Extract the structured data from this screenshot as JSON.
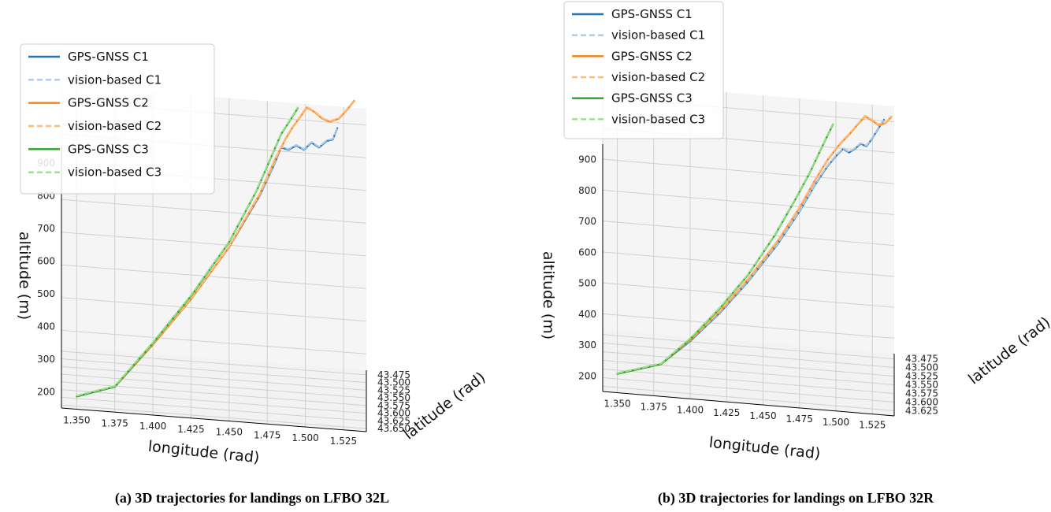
{
  "chart_data": [
    {
      "type": "line",
      "projection": "3d",
      "caption": "(a) 3D trajectories for landings on LFBO 32L",
      "xlabel": "longitude (rad)",
      "ylabel": "latitude (rad)",
      "zlabel": "altitude (m)",
      "xlim": [
        1.34,
        1.54
      ],
      "ylim": [
        43.46,
        43.66
      ],
      "zlim": [
        150,
        950
      ],
      "xticks": [
        "1.350",
        "1.375",
        "1.400",
        "1.425",
        "1.450",
        "1.475",
        "1.500",
        "1.525"
      ],
      "yticks": [
        "43.475",
        "43.500",
        "43.525",
        "43.550",
        "43.575",
        "43.600",
        "43.625",
        "43.650"
      ],
      "zticks": [
        "200",
        "300",
        "400",
        "500",
        "600",
        "700",
        "800",
        "900"
      ],
      "grid": true,
      "legend": "upper-left",
      "series": [
        {
          "name": "GPS-GNSS C1",
          "color": "#1f77b4",
          "dash": "solid",
          "points": [
            [
              1.35,
              43.645,
              175
            ],
            [
              1.375,
              43.62,
              190
            ],
            [
              1.4,
              43.59,
              300
            ],
            [
              1.425,
              43.56,
              420
            ],
            [
              1.45,
              43.53,
              560
            ],
            [
              1.47,
              43.505,
              700
            ],
            [
              1.48,
              43.49,
              790
            ],
            [
              1.484,
              43.48,
              830
            ],
            [
              1.489,
              43.475,
              820
            ],
            [
              1.494,
              43.47,
              830
            ],
            [
              1.499,
              43.466,
              815
            ],
            [
              1.504,
              43.462,
              835
            ],
            [
              1.509,
              43.46,
              820
            ],
            [
              1.514,
              43.458,
              840
            ],
            [
              1.518,
              43.457,
              845
            ],
            [
              1.521,
              43.456,
              880
            ]
          ]
        },
        {
          "name": "vision-based C1",
          "color": "#aec7e8",
          "dash": "dashed",
          "points": [
            [
              1.35,
              43.645,
              177
            ],
            [
              1.375,
              43.62,
              192
            ],
            [
              1.4,
              43.59,
              302
            ],
            [
              1.425,
              43.56,
              422
            ],
            [
              1.45,
              43.53,
              562
            ],
            [
              1.47,
              43.505,
              702
            ],
            [
              1.48,
              43.49,
              792
            ],
            [
              1.484,
              43.48,
              832
            ],
            [
              1.489,
              43.475,
              822
            ],
            [
              1.494,
              43.47,
              832
            ],
            [
              1.499,
              43.466,
              817
            ],
            [
              1.504,
              43.462,
              837
            ],
            [
              1.509,
              43.46,
              822
            ],
            [
              1.514,
              43.458,
              842
            ],
            [
              1.518,
              43.457,
              847
            ],
            [
              1.521,
              43.456,
              882
            ]
          ]
        },
        {
          "name": "GPS-GNSS C2",
          "color": "#ff7f0e",
          "dash": "solid",
          "points": [
            [
              1.35,
              43.645,
              175
            ],
            [
              1.375,
              43.62,
              190
            ],
            [
              1.4,
              43.59,
              300
            ],
            [
              1.425,
              43.56,
              420
            ],
            [
              1.45,
              43.53,
              560
            ],
            [
              1.47,
              43.505,
              705
            ],
            [
              1.48,
              43.49,
              800
            ],
            [
              1.487,
              43.483,
              860
            ],
            [
              1.492,
              43.478,
              895
            ],
            [
              1.497,
              43.474,
              925
            ],
            [
              1.501,
              43.471,
              950
            ],
            [
              1.506,
              43.468,
              935
            ],
            [
              1.511,
              43.466,
              915
            ],
            [
              1.516,
              43.464,
              905
            ],
            [
              1.522,
              43.462,
              915
            ],
            [
              1.527,
              43.46,
              940
            ],
            [
              1.532,
              43.459,
              970
            ]
          ]
        },
        {
          "name": "vision-based C2",
          "color": "#ffbb78",
          "dash": "dashed",
          "points": [
            [
              1.35,
              43.645,
              177
            ],
            [
              1.375,
              43.62,
              192
            ],
            [
              1.4,
              43.59,
              302
            ],
            [
              1.425,
              43.56,
              422
            ],
            [
              1.45,
              43.53,
              562
            ],
            [
              1.47,
              43.505,
              707
            ],
            [
              1.48,
              43.49,
              802
            ],
            [
              1.487,
              43.483,
              862
            ],
            [
              1.492,
              43.478,
              897
            ],
            [
              1.497,
              43.474,
              927
            ],
            [
              1.501,
              43.471,
              952
            ],
            [
              1.506,
              43.468,
              937
            ],
            [
              1.511,
              43.466,
              917
            ],
            [
              1.516,
              43.464,
              907
            ],
            [
              1.522,
              43.462,
              917
            ],
            [
              1.527,
              43.46,
              942
            ],
            [
              1.532,
              43.459,
              972
            ]
          ]
        },
        {
          "name": "GPS-GNSS C3",
          "color": "#2ca02c",
          "dash": "solid",
          "points": [
            [
              1.35,
              43.645,
              175
            ],
            [
              1.375,
              43.62,
              190
            ],
            [
              1.4,
              43.59,
              305
            ],
            [
              1.425,
              43.56,
              430
            ],
            [
              1.45,
              43.53,
              575
            ],
            [
              1.468,
              43.51,
              720
            ],
            [
              1.478,
              43.498,
              820
            ],
            [
              1.484,
              43.491,
              880
            ],
            [
              1.49,
              43.485,
              920
            ],
            [
              1.495,
              43.481,
              955
            ]
          ]
        },
        {
          "name": "vision-based C3",
          "color": "#98df8a",
          "dash": "dashed",
          "points": [
            [
              1.35,
              43.645,
              177
            ],
            [
              1.375,
              43.62,
              192
            ],
            [
              1.4,
              43.59,
              307
            ],
            [
              1.425,
              43.56,
              432
            ],
            [
              1.45,
              43.53,
              577
            ],
            [
              1.468,
              43.51,
              722
            ],
            [
              1.478,
              43.498,
              822
            ],
            [
              1.484,
              43.491,
              882
            ],
            [
              1.49,
              43.485,
              922
            ],
            [
              1.495,
              43.481,
              957
            ]
          ]
        }
      ]
    },
    {
      "type": "line",
      "projection": "3d",
      "caption": "(b) 3D trajectories for landings on LFBO 32R",
      "xlabel": "longitude (rad)",
      "ylabel": "latitude (rad)",
      "zlabel": "altitude (m)",
      "xlim": [
        1.34,
        1.54
      ],
      "ylim": [
        43.46,
        43.64
      ],
      "zlim": [
        150,
        950
      ],
      "xticks": [
        "1.350",
        "1.375",
        "1.400",
        "1.425",
        "1.450",
        "1.475",
        "1.500",
        "1.525"
      ],
      "yticks": [
        "43.475",
        "43.500",
        "43.525",
        "43.550",
        "43.575",
        "43.600",
        "43.625"
      ],
      "zticks": [
        "200",
        "300",
        "400",
        "500",
        "600",
        "700",
        "800",
        "900"
      ],
      "grid": true,
      "legend": "upper-left",
      "series": [
        {
          "name": "GPS-GNSS C1",
          "color": "#1f77b4",
          "dash": "solid",
          "points": [
            [
              1.35,
              43.63,
              200
            ],
            [
              1.38,
              43.605,
              215
            ],
            [
              1.4,
              43.585,
              275
            ],
            [
              1.42,
              43.565,
              350
            ],
            [
              1.44,
              43.545,
              440
            ],
            [
              1.46,
              43.525,
              545
            ],
            [
              1.475,
              43.51,
              640
            ],
            [
              1.486,
              43.498,
              720
            ],
            [
              1.494,
              43.49,
              770
            ],
            [
              1.5,
              43.484,
              800
            ],
            [
              1.505,
              43.479,
              820
            ],
            [
              1.509,
              43.475,
              805
            ],
            [
              1.513,
              43.472,
              815
            ],
            [
              1.517,
              43.469,
              830
            ],
            [
              1.521,
              43.466,
              820
            ],
            [
              1.525,
              43.464,
              845
            ],
            [
              1.529,
              43.462,
              875
            ],
            [
              1.533,
              43.461,
              905
            ]
          ]
        },
        {
          "name": "vision-based C1",
          "color": "#aec7e8",
          "dash": "dashed",
          "points": [
            [
              1.35,
              43.63,
              202
            ],
            [
              1.38,
              43.605,
              217
            ],
            [
              1.4,
              43.585,
              277
            ],
            [
              1.42,
              43.565,
              352
            ],
            [
              1.44,
              43.545,
              442
            ],
            [
              1.46,
              43.525,
              547
            ],
            [
              1.475,
              43.51,
              642
            ],
            [
              1.486,
              43.498,
              722
            ],
            [
              1.494,
              43.49,
              772
            ],
            [
              1.5,
              43.484,
              802
            ],
            [
              1.505,
              43.479,
              822
            ],
            [
              1.509,
              43.475,
              807
            ],
            [
              1.513,
              43.472,
              817
            ],
            [
              1.517,
              43.469,
              832
            ],
            [
              1.521,
              43.466,
              822
            ],
            [
              1.525,
              43.464,
              847
            ],
            [
              1.529,
              43.462,
              877
            ],
            [
              1.533,
              43.461,
              907
            ]
          ]
        },
        {
          "name": "GPS-GNSS C2",
          "color": "#ff7f0e",
          "dash": "solid",
          "points": [
            [
              1.35,
              43.63,
              200
            ],
            [
              1.38,
              43.605,
              215
            ],
            [
              1.4,
              43.585,
              278
            ],
            [
              1.42,
              43.565,
              355
            ],
            [
              1.44,
              43.545,
              448
            ],
            [
              1.46,
              43.525,
              555
            ],
            [
              1.475,
              43.51,
              652
            ],
            [
              1.486,
              43.498,
              735
            ],
            [
              1.494,
              43.49,
              790
            ],
            [
              1.502,
              43.483,
              835
            ],
            [
              1.509,
              43.477,
              865
            ],
            [
              1.515,
              43.472,
              895
            ],
            [
              1.52,
              43.469,
              920
            ],
            [
              1.525,
              43.466,
              905
            ],
            [
              1.529,
              43.464,
              890
            ],
            [
              1.534,
              43.462,
              895
            ],
            [
              1.538,
              43.46,
              915
            ]
          ]
        },
        {
          "name": "vision-based C2",
          "color": "#ffbb78",
          "dash": "dashed",
          "points": [
            [
              1.35,
              43.63,
              202
            ],
            [
              1.38,
              43.605,
              217
            ],
            [
              1.4,
              43.585,
              280
            ],
            [
              1.42,
              43.565,
              357
            ],
            [
              1.44,
              43.545,
              450
            ],
            [
              1.46,
              43.525,
              557
            ],
            [
              1.475,
              43.51,
              654
            ],
            [
              1.486,
              43.498,
              737
            ],
            [
              1.494,
              43.49,
              792
            ],
            [
              1.502,
              43.483,
              837
            ],
            [
              1.509,
              43.477,
              867
            ],
            [
              1.515,
              43.472,
              897
            ],
            [
              1.52,
              43.469,
              922
            ],
            [
              1.525,
              43.466,
              907
            ],
            [
              1.529,
              43.464,
              892
            ],
            [
              1.534,
              43.462,
              897
            ],
            [
              1.538,
              43.46,
              917
            ]
          ]
        },
        {
          "name": "GPS-GNSS C3",
          "color": "#2ca02c",
          "dash": "solid",
          "points": [
            [
              1.35,
              43.63,
              200
            ],
            [
              1.38,
              43.605,
              215
            ],
            [
              1.4,
              43.585,
              282
            ],
            [
              1.42,
              43.565,
              365
            ],
            [
              1.44,
              43.545,
              462
            ],
            [
              1.458,
              43.527,
              575
            ],
            [
              1.472,
              43.513,
              680
            ],
            [
              1.482,
              43.503,
              760
            ],
            [
              1.489,
              43.496,
              825
            ],
            [
              1.494,
              43.491,
              870
            ],
            [
              1.498,
              43.487,
              905
            ]
          ]
        },
        {
          "name": "vision-based C3",
          "color": "#98df8a",
          "dash": "dashed",
          "points": [
            [
              1.35,
              43.63,
              202
            ],
            [
              1.38,
              43.605,
              217
            ],
            [
              1.4,
              43.585,
              284
            ],
            [
              1.42,
              43.565,
              367
            ],
            [
              1.44,
              43.545,
              464
            ],
            [
              1.458,
              43.527,
              577
            ],
            [
              1.472,
              43.513,
              682
            ],
            [
              1.482,
              43.503,
              762
            ],
            [
              1.489,
              43.496,
              827
            ],
            [
              1.494,
              43.491,
              872
            ],
            [
              1.498,
              43.487,
              907
            ]
          ]
        }
      ]
    }
  ]
}
